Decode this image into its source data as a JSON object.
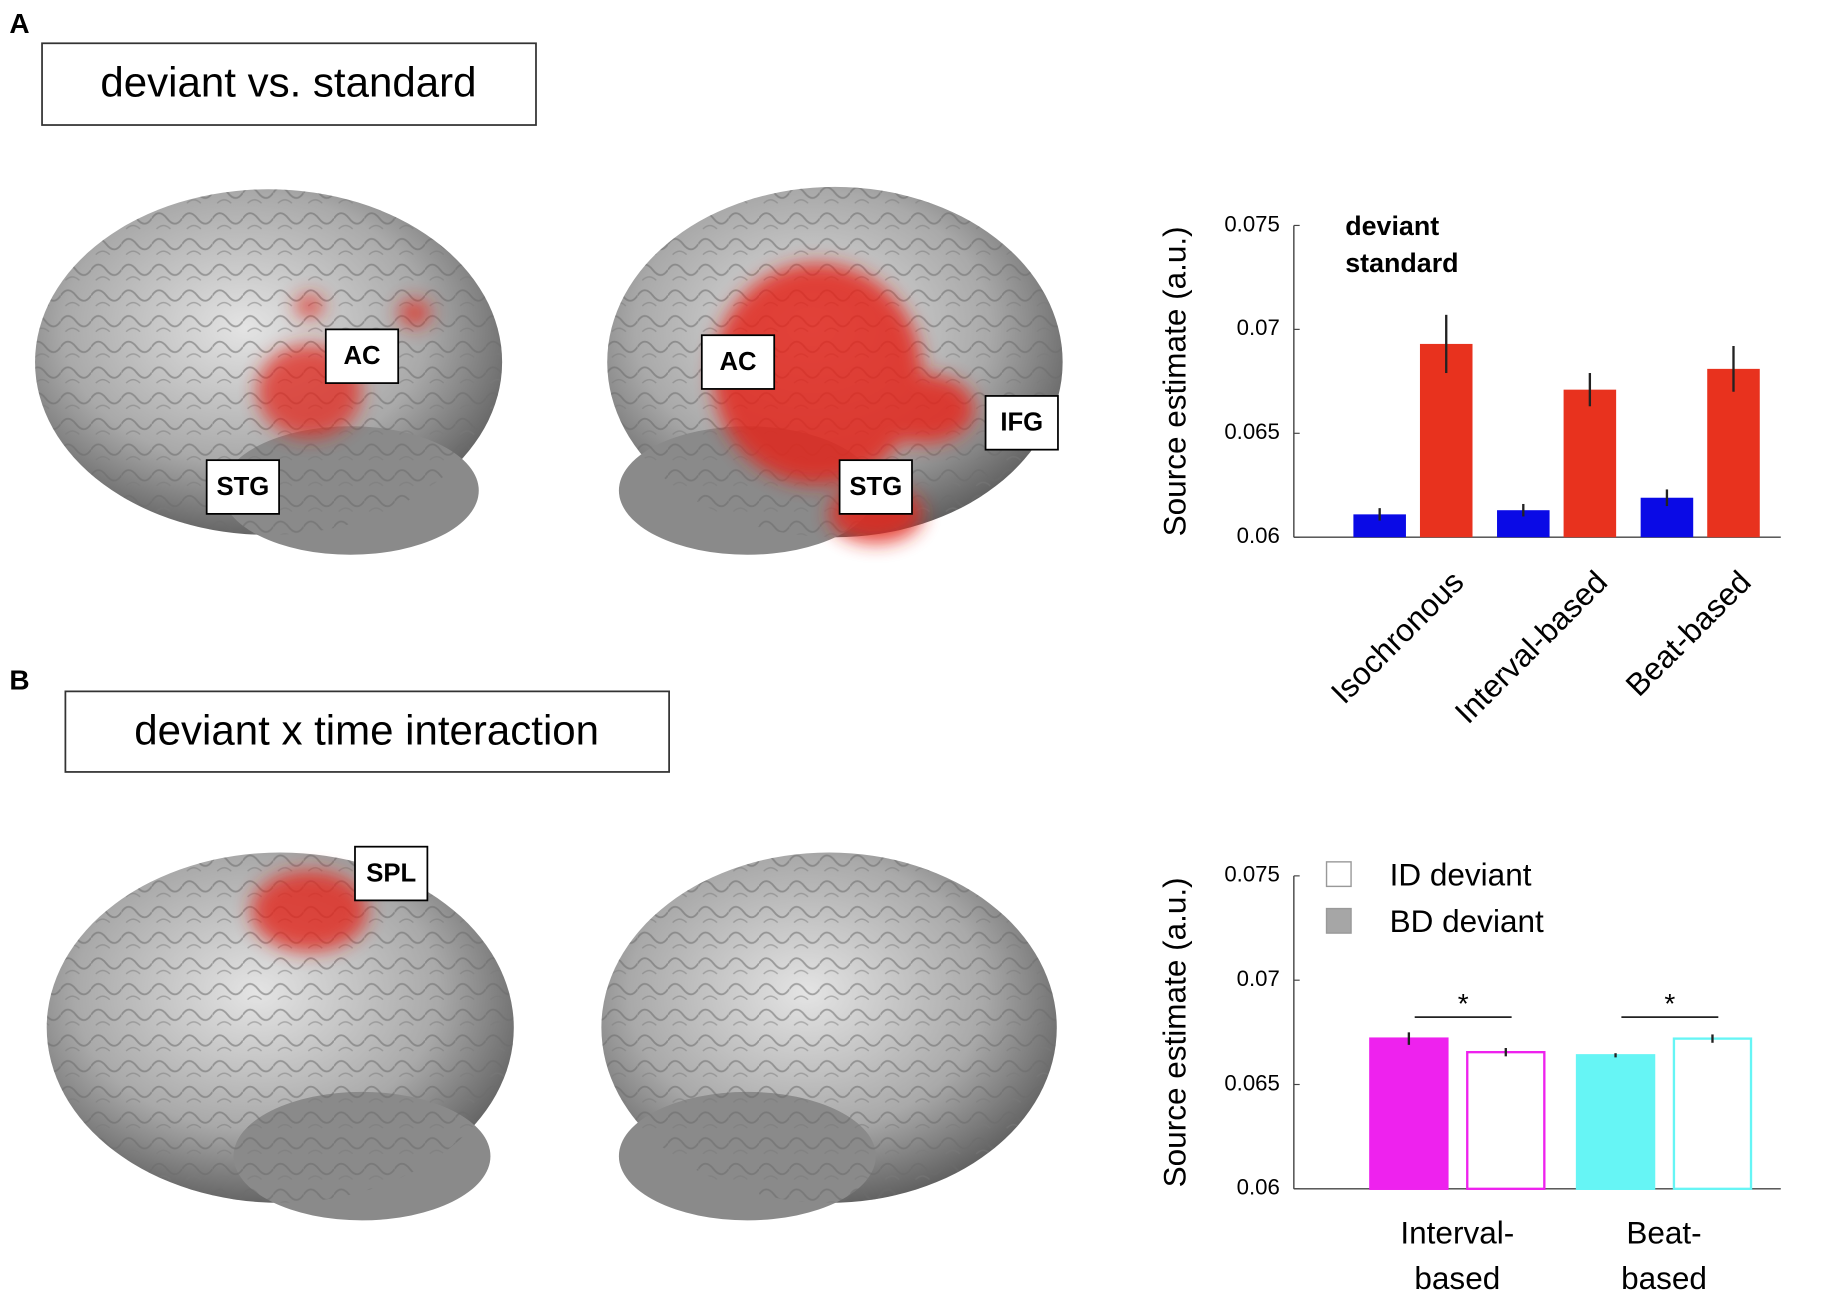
{
  "panels": [
    {
      "label": "A",
      "heading": "deviant vs. standard",
      "regions": [
        "AC",
        "STG",
        "AC",
        "IFG",
        "STG"
      ]
    },
    {
      "label": "B",
      "heading": "deviant x time interaction",
      "regions": [
        "SPL"
      ]
    }
  ],
  "chart_data": [
    {
      "type": "bar",
      "ylabel": "Source estimate (a.u.)",
      "categories": [
        "Isochronous",
        "Interval-based",
        "Beat-based"
      ],
      "series": [
        {
          "name": "standard",
          "color": "#0a0ae6",
          "values": [
            0.0611,
            0.0613,
            0.0619
          ],
          "errors": [
            0.0003,
            0.0003,
            0.0004
          ]
        },
        {
          "name": "deviant",
          "color": "#e8321e",
          "values": [
            0.0693,
            0.0671,
            0.0681
          ],
          "errors": [
            0.0014,
            0.0008,
            0.0011
          ]
        }
      ],
      "ylim": [
        0.06,
        0.075
      ],
      "yticks": [
        0.06,
        0.065,
        0.07,
        0.075
      ]
    },
    {
      "type": "bar",
      "ylabel": "Source estimate (a.u.)",
      "categories": [
        "Interval-\nbased",
        "Beat-\nbased"
      ],
      "category_colors": [
        "#ee22ee",
        "#66f5f5"
      ],
      "series": [
        {
          "name": "BD deviant",
          "color": "#a6a6a6",
          "style": "filled",
          "values": [
            0.0672,
            0.0664
          ],
          "errors": [
            0.0003,
            0.0001
          ]
        },
        {
          "name": "ID deviant",
          "color": "#ffffff",
          "style": "open",
          "values": [
            0.06655,
            0.0672
          ],
          "errors": [
            0.0002,
            0.0002
          ]
        }
      ],
      "significance": [
        "*",
        "*"
      ],
      "ylim": [
        0.06,
        0.075
      ],
      "yticks": [
        0.06,
        0.065,
        0.07,
        0.075
      ]
    }
  ]
}
